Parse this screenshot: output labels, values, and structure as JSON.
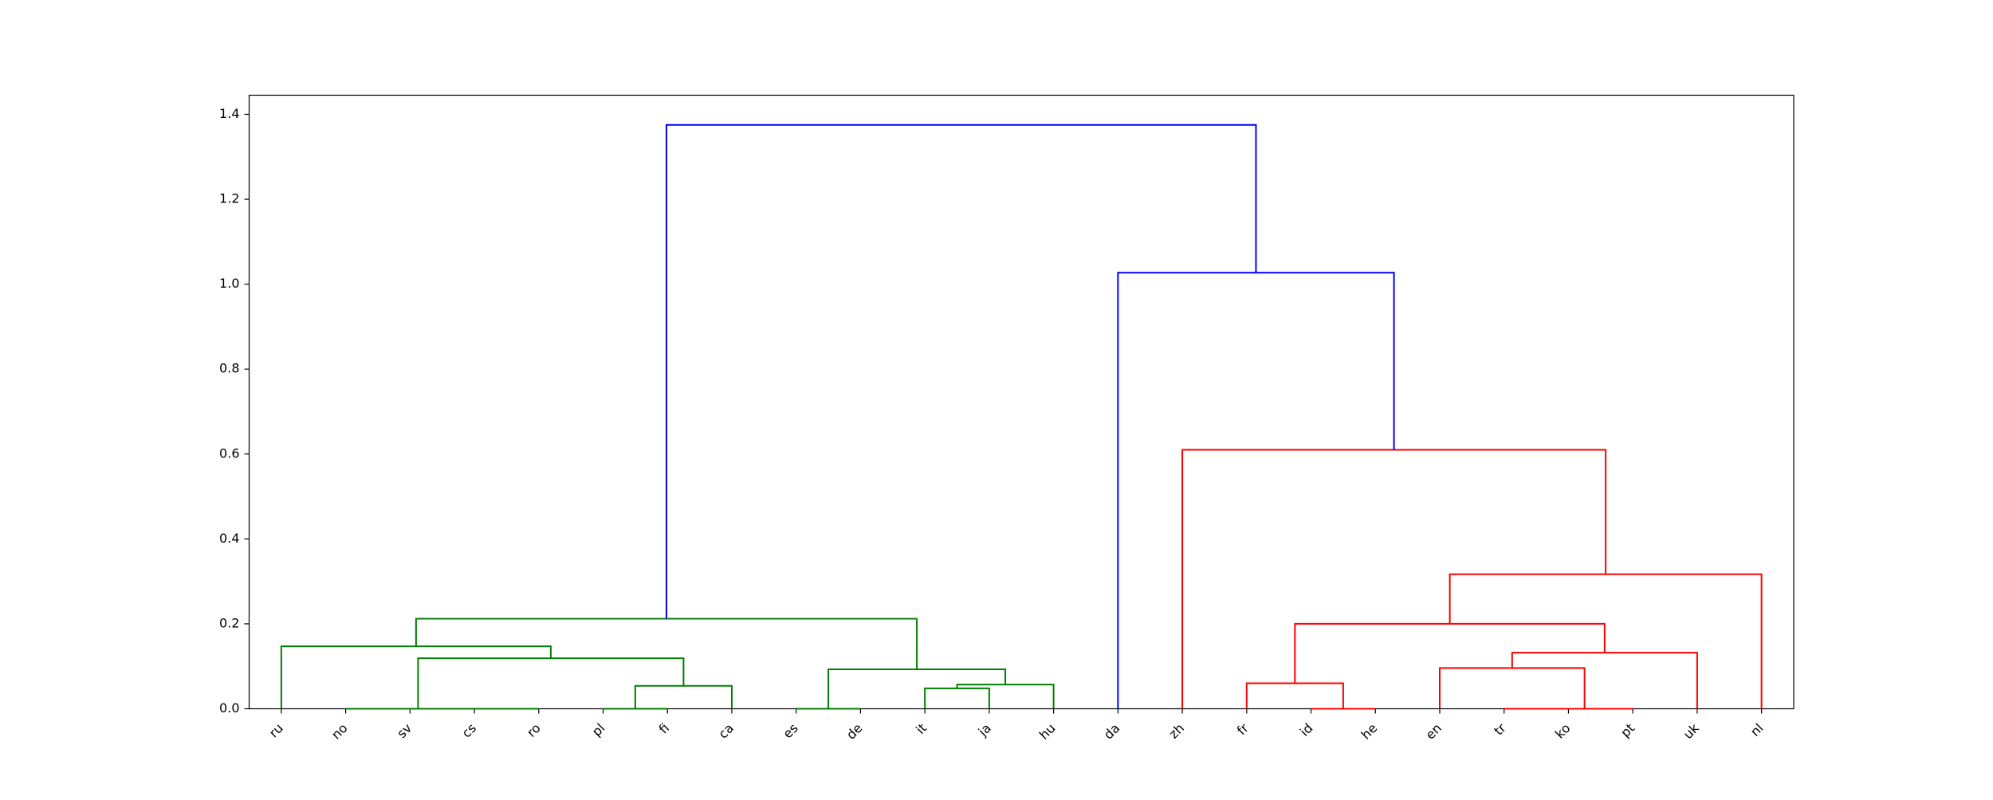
{
  "chart_data": {
    "type": "dendrogram",
    "ylim": [
      0,
      1.445
    ],
    "yticks": [
      {
        "value": 0,
        "label": "0.0"
      },
      0.2,
      0.4,
      0.6,
      0.8,
      {
        "value": 1,
        "label": "1.0"
      },
      1.2,
      1.4
    ],
    "tree": {
      "height": 1.375,
      "color": "#0000ff",
      "children": [
        {
          "height": 0.212,
          "color": "#008000",
          "children": [
            {
              "height": 0.147,
              "color": "#008000",
              "children": [
                "ru",
                {
                  "height": 0.119,
                  "color": "#008000",
                  "children": [
                    {
                      "height": 0,
                      "color": "#008000",
                      "children": [
                        "no",
                        {
                          "height": 0,
                          "color": "#008000",
                          "children": [
                            {
                              "height": 0,
                              "color": "#008000",
                              "children": [
                                "sv",
                                "cs"
                              ]
                            },
                            "ro"
                          ]
                        }
                      ]
                    },
                    {
                      "height": 0.054,
                      "color": "#008000",
                      "children": [
                        {
                          "height": 0,
                          "color": "#008000",
                          "children": [
                            "pl",
                            "fi"
                          ]
                        },
                        "ca"
                      ]
                    }
                  ]
                }
              ]
            },
            {
              "height": 0.093,
              "color": "#008000",
              "children": [
                {
                  "height": 0,
                  "color": "#008000",
                  "children": [
                    "es",
                    "de"
                  ]
                },
                {
                  "height": 0.057,
                  "color": "#008000",
                  "children": [
                    {
                      "height": 0.048,
                      "color": "#008000",
                      "children": [
                        "it",
                        "ja"
                      ]
                    },
                    "hu"
                  ]
                }
              ]
            }
          ]
        },
        {
          "height": 1.027,
          "color": "#0000ff",
          "children": [
            "da",
            {
              "height": 0.61,
              "color": "#ff0000",
              "children": [
                "zh",
                {
                  "height": 0.317,
                  "color": "#ff0000",
                  "children": [
                    {
                      "height": 0.2,
                      "color": "#ff0000",
                      "children": [
                        {
                          "height": 0.06,
                          "color": "#ff0000",
                          "children": [
                            "fr",
                            {
                              "height": 0,
                              "color": "#ff0000",
                              "children": [
                                "id",
                                "he"
                              ]
                            }
                          ]
                        },
                        {
                          "height": 0.132,
                          "color": "#ff0000",
                          "children": [
                            {
                              "height": 0.096,
                              "color": "#ff0000",
                              "children": [
                                "en",
                                {
                                  "height": 0,
                                  "color": "#ff0000",
                                  "children": [
                                    {
                                      "height": 0,
                                      "color": "#ff0000",
                                      "children": [
                                        "tr",
                                        "ko"
                                      ]
                                    },
                                    "pt"
                                  ]
                                }
                              ]
                            },
                            "uk"
                          ]
                        }
                      ]
                    },
                    "nl"
                  ]
                }
              ]
            }
          ]
        }
      ]
    }
  }
}
